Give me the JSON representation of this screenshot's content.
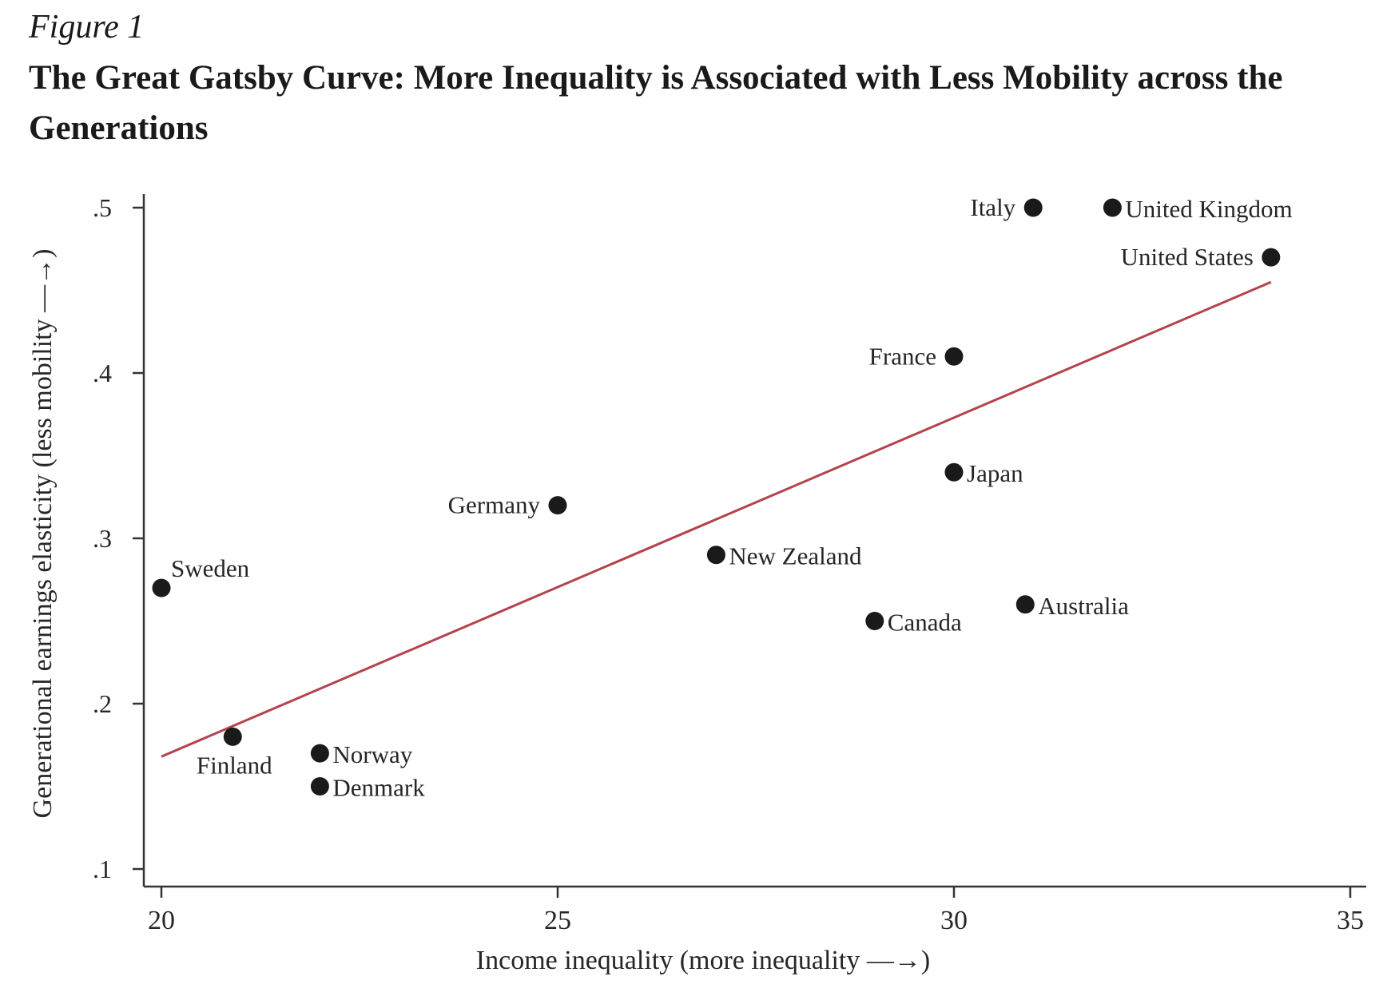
{
  "figure": {
    "label": "Figure 1",
    "title": "The Great Gatsby Curve: More Inequality is Associated with Less Mobility across the Generations"
  },
  "chart_data": {
    "type": "scatter",
    "xlabel": "Income inequality (more inequality —→)",
    "ylabel": "Generational earnings elasticity (less mobility —→)",
    "xlim": [
      20,
      35
    ],
    "ylim": [
      0.1,
      0.5
    ],
    "xticks": [
      20,
      25,
      30,
      35
    ],
    "xtick_labels": [
      "20",
      "25",
      "30",
      "35"
    ],
    "yticks": [
      0.1,
      0.2,
      0.3,
      0.4,
      0.5
    ],
    "ytick_labels": [
      ".1",
      ".2",
      ".3",
      ".4",
      ".5"
    ],
    "grid": false,
    "colors": {
      "points": "#1a1a1a",
      "fit_line": "#b5424c",
      "axis": "#333333"
    },
    "points": [
      {
        "label": "Italy",
        "x": 31,
        "y": 0.5,
        "label_pos": "left"
      },
      {
        "label": "United Kingdom",
        "x": 32,
        "y": 0.5,
        "label_pos": "right"
      },
      {
        "label": "United States",
        "x": 34,
        "y": 0.47,
        "label_pos": "left"
      },
      {
        "label": "France",
        "x": 30,
        "y": 0.41,
        "label_pos": "left"
      },
      {
        "label": "Japan",
        "x": 30,
        "y": 0.34,
        "label_pos": "right"
      },
      {
        "label": "Germany",
        "x": 25,
        "y": 0.32,
        "label_pos": "left"
      },
      {
        "label": "New Zealand",
        "x": 27,
        "y": 0.29,
        "label_pos": "right"
      },
      {
        "label": "Sweden",
        "x": 20,
        "y": 0.27,
        "label_pos": "above-right"
      },
      {
        "label": "Canada",
        "x": 29,
        "y": 0.25,
        "label_pos": "right"
      },
      {
        "label": "Australia",
        "x": 30.9,
        "y": 0.26,
        "label_pos": "right"
      },
      {
        "label": "Finland",
        "x": 20.9,
        "y": 0.18,
        "label_pos": "below"
      },
      {
        "label": "Norway",
        "x": 22,
        "y": 0.17,
        "label_pos": "right"
      },
      {
        "label": "Denmark",
        "x": 22,
        "y": 0.15,
        "label_pos": "right"
      }
    ],
    "fit_line": {
      "x": [
        20,
        34
      ],
      "y": [
        0.168,
        0.455
      ]
    }
  }
}
